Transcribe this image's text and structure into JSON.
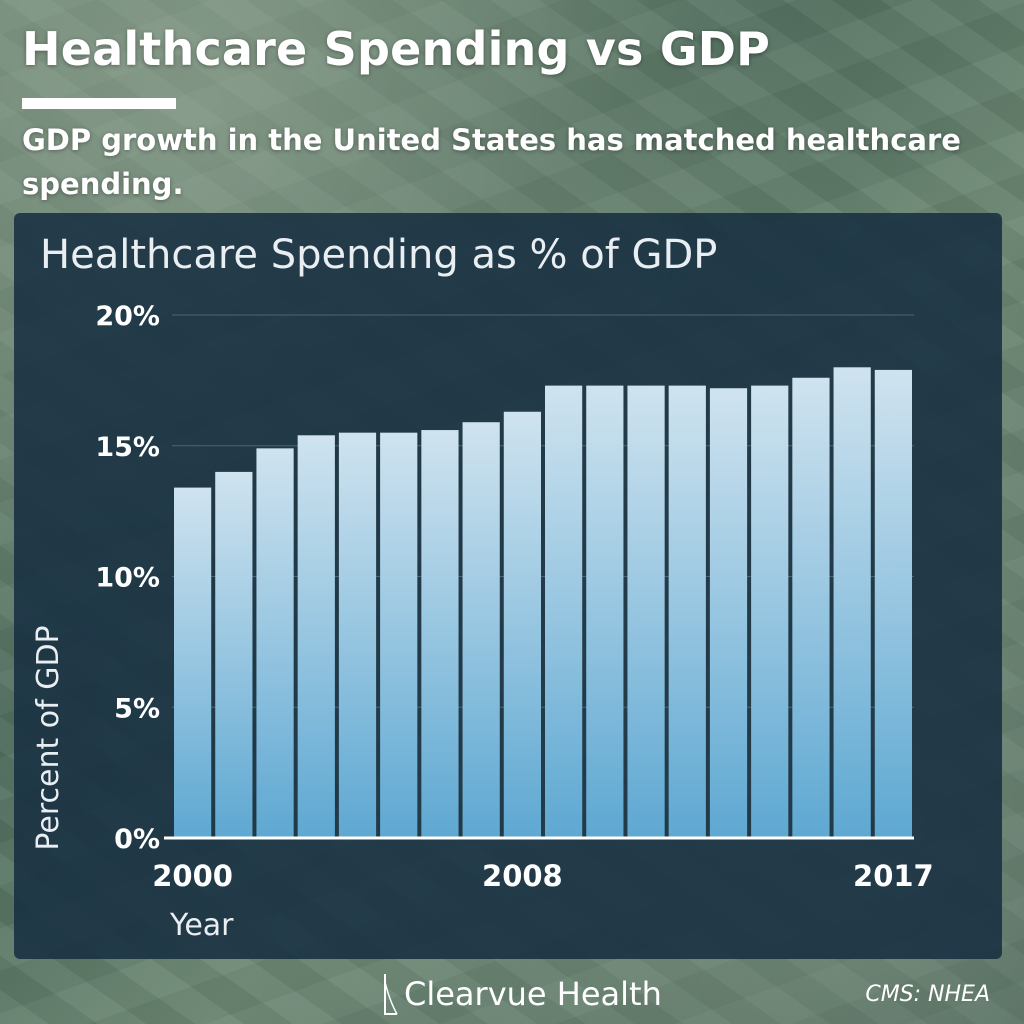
{
  "header": {
    "title": "Healthcare Spending vs GDP",
    "subtitle": "GDP growth in the United States has matched healthcare spending."
  },
  "footer": {
    "brand": "Clearvue Health",
    "source": "CMS: NHEA"
  },
  "colors": {
    "panel": "#183042",
    "bar_top": "#cfe3ef",
    "bar_bottom": "#5ea8d2",
    "grid": "#4b6475"
  },
  "chart_data": {
    "type": "bar",
    "title": "Healthcare Spending as % of GDP",
    "xlabel": "Year",
    "ylabel": "Percent of GDP",
    "categories": [
      "2000",
      "2001",
      "2002",
      "2003",
      "2004",
      "2005",
      "2006",
      "2007",
      "2008",
      "2009",
      "2010",
      "2011",
      "2012",
      "2013",
      "2014",
      "2015",
      "2016",
      "2017"
    ],
    "values": [
      13.4,
      14.0,
      14.9,
      15.4,
      15.5,
      15.5,
      15.6,
      15.9,
      16.3,
      17.3,
      17.3,
      17.3,
      17.3,
      17.2,
      17.3,
      17.6,
      18.0,
      17.9
    ],
    "x_tick_labels": [
      "2000",
      "2008",
      "2017"
    ],
    "y_ticks": [
      "0%",
      "5%",
      "10%",
      "15%",
      "20%"
    ],
    "ylim": [
      0,
      20
    ],
    "grid": true,
    "legend": false
  }
}
